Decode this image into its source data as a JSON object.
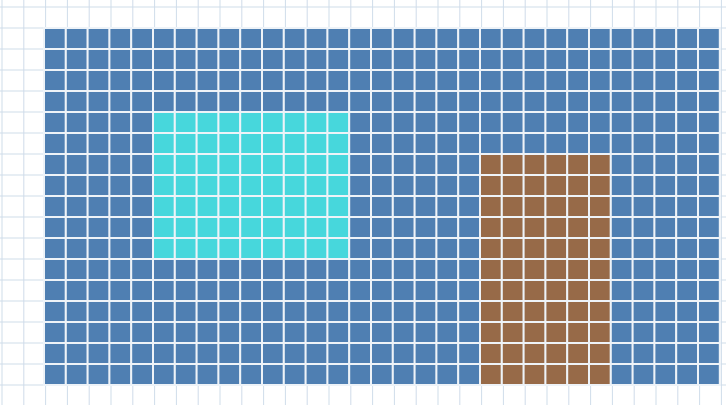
{
  "board": {
    "cols": 31,
    "rows": 17,
    "colors": {
      "background": "#ffffff",
      "grid_line": "#cfdcea",
      "field": "#4f7fb2",
      "cyan_block": "#47d7dc",
      "brown_block": "#976a48"
    },
    "regions": [
      {
        "name": "field",
        "color": "#4f7fb2",
        "col": 0,
        "row": 0,
        "cols": 31,
        "rows": 17
      },
      {
        "name": "cyan-block",
        "color": "#47d7dc",
        "col": 5,
        "row": 4,
        "cols": 9,
        "rows": 7
      },
      {
        "name": "brown-block",
        "color": "#976a48",
        "col": 20,
        "row": 6,
        "cols": 6,
        "rows": 11
      }
    ]
  }
}
